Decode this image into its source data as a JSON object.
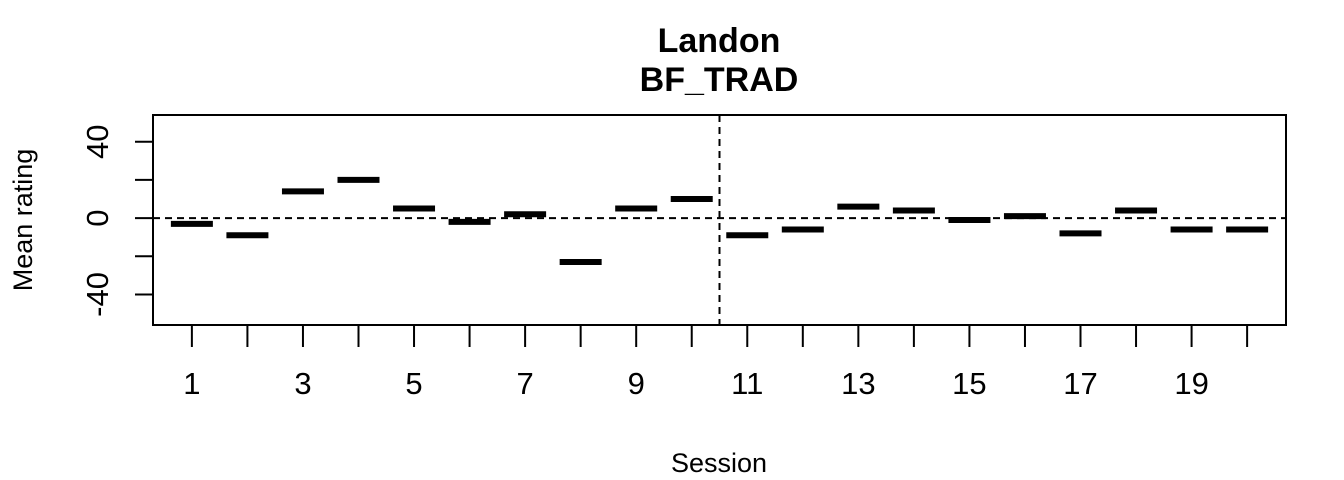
{
  "chart_data": {
    "type": "scatter",
    "marker": "horizontal-dash",
    "title": "Landon",
    "subtitle": "BF_TRAD",
    "xlabel": "Session",
    "ylabel": "Mean rating",
    "x": [
      1,
      2,
      3,
      4,
      5,
      6,
      7,
      8,
      9,
      10,
      11,
      12,
      13,
      14,
      15,
      16,
      17,
      18,
      19,
      20
    ],
    "values": [
      -3,
      -9,
      14,
      20,
      5,
      -2,
      2,
      -23,
      5,
      10,
      -9,
      -6,
      6,
      4,
      -1,
      1,
      -8,
      4,
      -6,
      -6
    ],
    "xlim": [
      0.3,
      20.7
    ],
    "ylim": [
      -56,
      54
    ],
    "x_ticks": [
      1,
      2,
      3,
      4,
      5,
      6,
      7,
      8,
      9,
      10,
      11,
      12,
      13,
      14,
      15,
      16,
      17,
      18,
      19,
      20
    ],
    "x_tick_labels": [
      "1",
      "3",
      "5",
      "7",
      "9",
      "11",
      "13",
      "15",
      "17",
      "19"
    ],
    "y_ticks": [
      -40,
      -20,
      0,
      20,
      40
    ],
    "y_tick_labels": [
      "-40",
      "0",
      "40"
    ],
    "reference_lines": {
      "horizontal_y": 0,
      "vertical_x": 10.5,
      "style": "dashed"
    },
    "grid": false,
    "colors": {
      "marks": "#000000",
      "axes": "#000000",
      "background": "#ffffff"
    }
  }
}
